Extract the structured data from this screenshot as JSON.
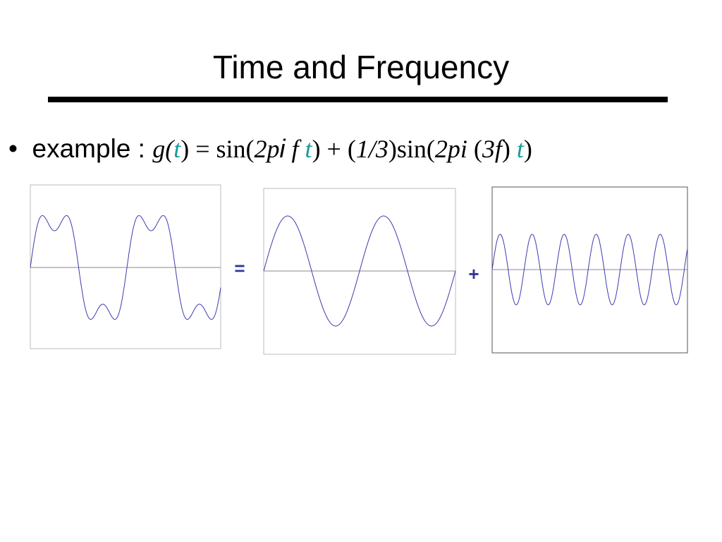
{
  "title": "Time and Frequency",
  "bullet": {
    "label": "example : ",
    "formula": [
      "g(",
      "t",
      ") = sin(",
      "2p",
      "i",
      " f ",
      "t",
      ") + (",
      "1/3",
      ")sin(",
      "2pi",
      " (",
      "3f",
      ") ",
      "t",
      ")"
    ]
  },
  "operators": [
    "=",
    "+"
  ]
}
